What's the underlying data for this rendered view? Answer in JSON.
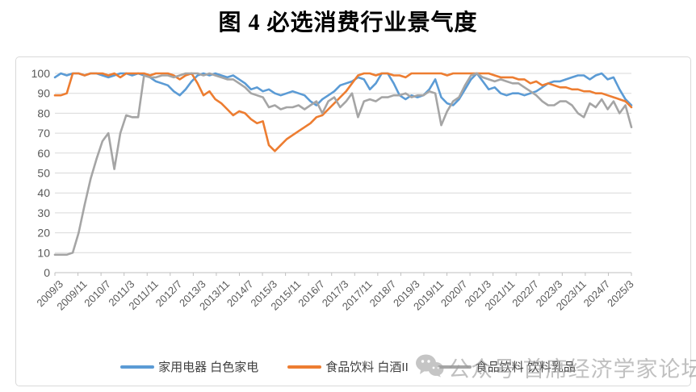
{
  "title": "图 4 必选消费行业景气度",
  "watermark": {
    "icon": "wechat-icon",
    "text": "公众号 首席经济学家论坛"
  },
  "legend": {
    "position": "bottom"
  },
  "chart_data": {
    "type": "line",
    "title": "图 4 必选消费行业景气度",
    "xlabel": "",
    "ylabel": "",
    "ylim": [
      0,
      100
    ],
    "y_ticks": [
      0,
      10,
      20,
      30,
      40,
      50,
      60,
      70,
      80,
      90,
      100
    ],
    "grid": "horizontal",
    "legend_position": "bottom",
    "x_start": "2009/3",
    "x_step_months": 2,
    "x_tick_labels": [
      "2009/3",
      "2009/11",
      "2010/7",
      "2011/3",
      "2011/11",
      "2012/7",
      "2013/3",
      "2013/11",
      "2014/7",
      "2015/3",
      "2015/11",
      "2016/7",
      "2017/3",
      "2017/11",
      "2018/7",
      "2019/3",
      "2019/11",
      "2020/7",
      "2021/3",
      "2021/11",
      "2022/7",
      "2023/3",
      "2023/11",
      "2024/7",
      "2025/3"
    ],
    "label_every_n_points": 4,
    "series": [
      {
        "name": "家用电器 白色家电",
        "color": "#5B9BD5",
        "values": [
          98,
          100,
          99,
          100,
          100,
          99,
          100,
          100,
          99,
          98,
          99,
          100,
          100,
          99,
          100,
          99,
          98,
          96,
          95,
          94,
          91,
          89,
          92,
          96,
          99,
          100,
          99,
          100,
          99,
          98,
          99,
          97,
          95,
          92,
          93,
          91,
          92,
          90,
          89,
          90,
          91,
          90,
          89,
          86,
          84,
          87,
          89,
          91,
          94,
          95,
          96,
          98,
          97,
          92,
          95,
          100,
          100,
          95,
          89,
          87,
          89,
          88,
          89,
          92,
          97,
          88,
          85,
          84,
          87,
          92,
          97,
          100,
          96,
          92,
          93,
          90,
          89,
          90,
          90,
          89,
          90,
          91,
          93,
          95,
          96,
          96,
          97,
          98,
          99,
          99,
          97,
          99,
          100,
          97,
          98,
          92,
          87,
          84
        ]
      },
      {
        "name": "食品饮料 白酒II",
        "color": "#ED7D31",
        "values": [
          89,
          89,
          90,
          100,
          100,
          99,
          100,
          100,
          100,
          99,
          100,
          98,
          100,
          100,
          100,
          100,
          99,
          100,
          100,
          100,
          99,
          97,
          99,
          100,
          95,
          89,
          91,
          87,
          85,
          82,
          79,
          81,
          80,
          77,
          75,
          76,
          64,
          61,
          64,
          67,
          69,
          71,
          73,
          75,
          78,
          79,
          82,
          85,
          88,
          91,
          95,
          99,
          100,
          100,
          99,
          100,
          100,
          99,
          99,
          98,
          100,
          100,
          100,
          100,
          100,
          100,
          99,
          100,
          100,
          100,
          100,
          100,
          100,
          100,
          99,
          98,
          98,
          98,
          97,
          97,
          95,
          96,
          94,
          95,
          94,
          93,
          93,
          92,
          92,
          91,
          91,
          90,
          90,
          89,
          88,
          87,
          86,
          83
        ]
      },
      {
        "name": "食品饮料 饮料乳品",
        "color": "#A5A5A5",
        "values": [
          9,
          9,
          9,
          10,
          20,
          34,
          47,
          57,
          66,
          70,
          52,
          70,
          79,
          78,
          78,
          99,
          98,
          98,
          99,
          99,
          98,
          99,
          100,
          100,
          100,
          99,
          100,
          99,
          98,
          97,
          97,
          95,
          93,
          90,
          89,
          88,
          83,
          84,
          82,
          83,
          83,
          84,
          82,
          84,
          86,
          80,
          86,
          88,
          83,
          86,
          90,
          78,
          86,
          87,
          86,
          88,
          88,
          89,
          89,
          90,
          88,
          89,
          89,
          91,
          90,
          74,
          81,
          86,
          88,
          94,
          99,
          100,
          98,
          97,
          96,
          97,
          96,
          95,
          95,
          93,
          91,
          89,
          86,
          84,
          84,
          86,
          86,
          84,
          80,
          78,
          85,
          83,
          87,
          82,
          86,
          80,
          84,
          73
        ]
      }
    ],
    "axis_colors": {
      "grid": "#D9D9D9",
      "axis_line": "#BFBFBF",
      "tick_label": "#595959"
    }
  }
}
